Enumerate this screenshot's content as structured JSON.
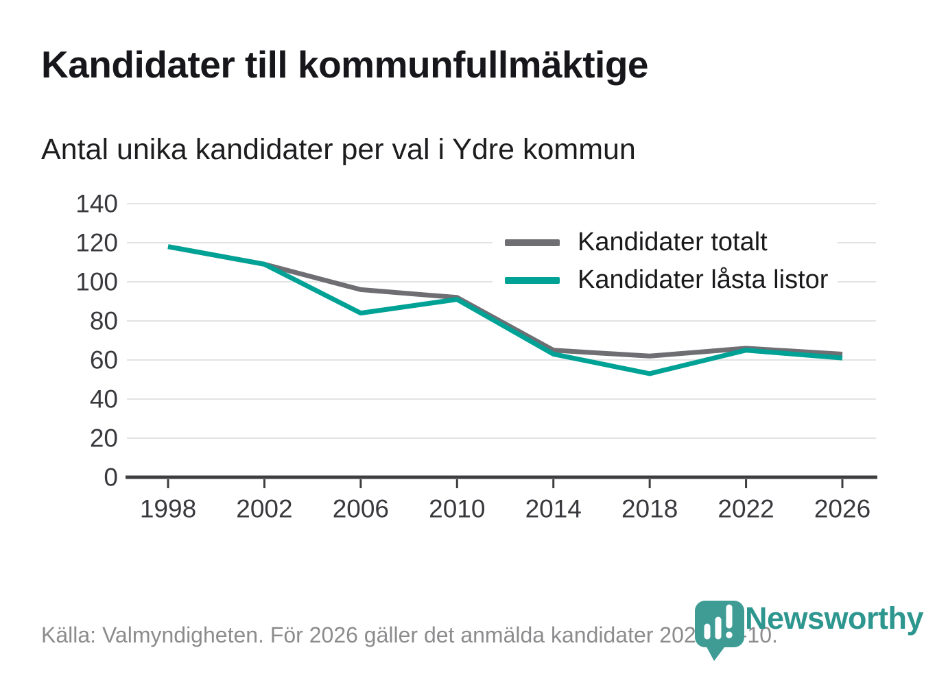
{
  "header": {
    "title": "Kandidater till kommunfullmäktige",
    "subtitle": "Antal unika kandidater per val i Ydre kommun"
  },
  "chart_data": {
    "type": "line",
    "title": "Kandidater till kommunfullmäktige",
    "subtitle": "Antal unika kandidater per val i Ydre kommun",
    "categories": [
      "1998",
      "2002",
      "2006",
      "2010",
      "2014",
      "2018",
      "2022",
      "2026"
    ],
    "series": [
      {
        "name": "Kandidater totalt",
        "color": "#6e6e73",
        "values": [
          118,
          109,
          96,
          92,
          65,
          62,
          66,
          63
        ]
      },
      {
        "name": "Kandidater låsta listor",
        "color": "#00a296",
        "values": [
          118,
          109,
          84,
          91,
          63,
          53,
          65,
          61
        ]
      }
    ],
    "xlabel": "",
    "ylabel": "",
    "ylim": [
      0,
      140
    ],
    "yticks": [
      0,
      20,
      40,
      60,
      80,
      100,
      120,
      140
    ],
    "grid": true,
    "legend_position": "inside-top-right"
  },
  "colors": {
    "grid": "#e3e3e3",
    "axis": "#3d3d40",
    "tick_label": "#38383d",
    "title": "#17171b",
    "subtitle": "#1d1d1f",
    "source": "#8c8c8e"
  },
  "footer": {
    "source": "Källa: Valmyndigheten. För 2026 gäller det anmälda kandidater 2026-04-10."
  },
  "branding": {
    "wordmark": "Newsworthy",
    "wordmark_color": "#2d968f",
    "pin_color": "#3e9c95",
    "pin_glyph_color": "#ffffff"
  }
}
